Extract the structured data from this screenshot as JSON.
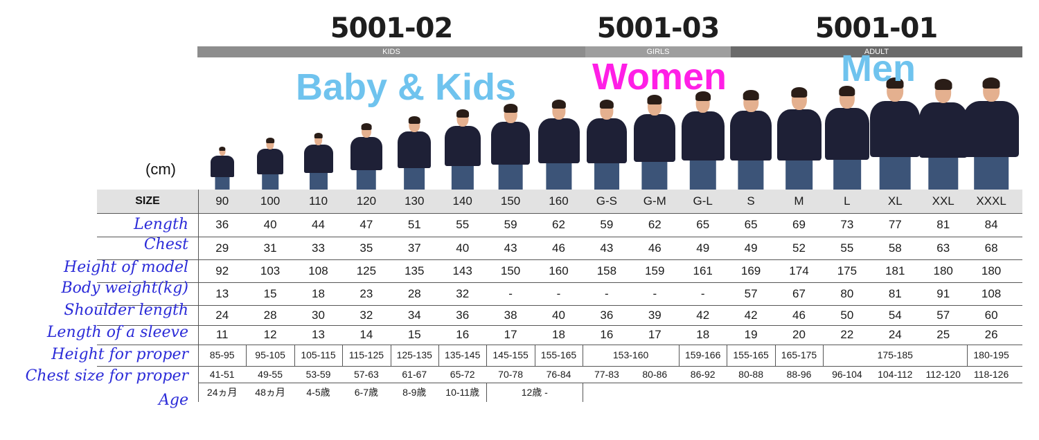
{
  "header": {
    "codes": [
      {
        "code": "5001-02",
        "category": "KIDS"
      },
      {
        "code": "5001-03",
        "category": "GIRLS"
      },
      {
        "code": "5001-01",
        "category": "ADULT"
      }
    ]
  },
  "labels": {
    "kids": "Baby & Kids",
    "women": "Women",
    "men": "Men"
  },
  "unit": "(cm)",
  "sizes": [
    "90",
    "100",
    "110",
    "120",
    "130",
    "140",
    "150",
    "160",
    "G-S",
    "G-M",
    "G-L",
    "S",
    "M",
    "L",
    "XL",
    "XXL",
    "XXXL"
  ],
  "size_header": "SIZE",
  "rows": [
    {
      "label": "Length",
      "values": [
        "36",
        "40",
        "44",
        "47",
        "51",
        "55",
        "59",
        "62",
        "59",
        "62",
        "65",
        "65",
        "69",
        "73",
        "77",
        "81",
        "84"
      ]
    },
    {
      "label": "Chest",
      "values": [
        "29",
        "31",
        "33",
        "35",
        "37",
        "40",
        "43",
        "46",
        "43",
        "46",
        "49",
        "49",
        "52",
        "55",
        "58",
        "63",
        "68"
      ]
    },
    {
      "label": "Height of model",
      "values": [
        "92",
        "103",
        "108",
        "125",
        "135",
        "143",
        "150",
        "160",
        "158",
        "159",
        "161",
        "169",
        "174",
        "175",
        "181",
        "180",
        "180"
      ]
    },
    {
      "label": "Body weight(kg)",
      "values": [
        "13",
        "15",
        "18",
        "23",
        "28",
        "32",
        "-",
        "-",
        "-",
        "-",
        "-",
        "57",
        "67",
        "80",
        "81",
        "91",
        "108"
      ]
    },
    {
      "label": "Shoulder length",
      "values": [
        "24",
        "28",
        "30",
        "32",
        "34",
        "36",
        "38",
        "40",
        "36",
        "39",
        "42",
        "42",
        "46",
        "50",
        "54",
        "57",
        "60"
      ]
    },
    {
      "label": "Length of a sleeve",
      "values": [
        "11",
        "12",
        "13",
        "14",
        "15",
        "16",
        "17",
        "18",
        "16",
        "17",
        "18",
        "19",
        "20",
        "22",
        "24",
        "25",
        "26"
      ]
    }
  ],
  "height_proper": {
    "label": "Height for proper",
    "values": [
      {
        "text": "85-95",
        "span": 1
      },
      {
        "text": "95-105",
        "span": 1
      },
      {
        "text": "105-115",
        "span": 1
      },
      {
        "text": "115-125",
        "span": 1
      },
      {
        "text": "125-135",
        "span": 1
      },
      {
        "text": "135-145",
        "span": 1
      },
      {
        "text": "145-155",
        "span": 1
      },
      {
        "text": "155-165",
        "span": 1
      },
      {
        "text": "153-160",
        "span": 2
      },
      {
        "text": "159-166",
        "span": 1
      },
      {
        "text": "155-165",
        "span": 1
      },
      {
        "text": "165-175",
        "span": 1
      },
      {
        "text": "175-185",
        "span": 3
      },
      {
        "text": "180-195",
        "span": 1
      }
    ]
  },
  "chest_proper": {
    "label": "Chest size for proper",
    "values": [
      "41-51",
      "49-55",
      "53-59",
      "57-63",
      "61-67",
      "65-72",
      "70-78",
      "76-84",
      "77-83",
      "80-86",
      "86-92",
      "80-88",
      "88-96",
      "96-104",
      "104-112",
      "112-120",
      "118-126"
    ]
  },
  "age": {
    "label": "Age",
    "values": [
      {
        "text": "24ヵ月",
        "span": 1
      },
      {
        "text": "48ヵ月",
        "span": 1
      },
      {
        "text": "4-5歳",
        "span": 1
      },
      {
        "text": "6-7歳",
        "span": 1
      },
      {
        "text": "8-9歳",
        "span": 1
      },
      {
        "text": "10-11歳",
        "span": 1
      },
      {
        "text": "12歳 -",
        "span": 2
      }
    ]
  },
  "colors": {
    "kids_label": "#6fc3ee",
    "women_label": "#ff1fe6",
    "men_label": "#6fc3ee",
    "row_label": "#2b2bd8",
    "shirt": "#1e2036"
  }
}
